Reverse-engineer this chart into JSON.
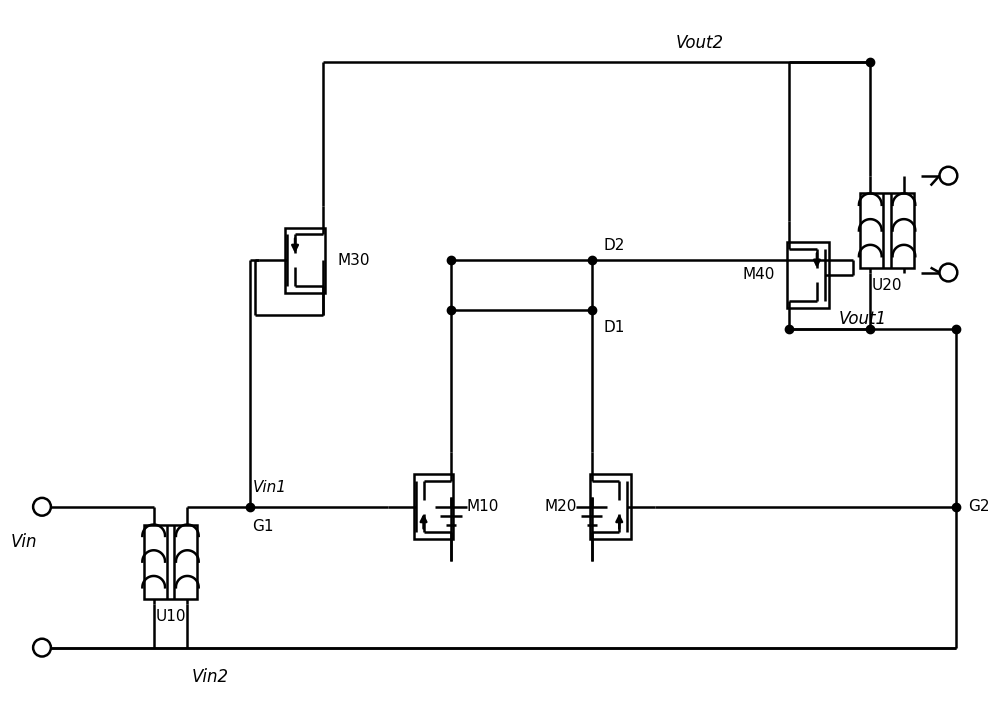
{
  "bg_color": "#ffffff",
  "lc": "#000000",
  "lw": 1.8,
  "figsize": [
    10.0,
    7.19
  ],
  "dpi": 100,
  "labels": {
    "Vin": "Vin",
    "Vin1": "Vin1",
    "Vin2": "Vin2",
    "Vout1": "Vout1",
    "Vout2": "Vout2",
    "G1": "G1",
    "G2": "G2",
    "D1": "D1",
    "D2": "D2",
    "M10": "M10",
    "M20": "M20",
    "M30": "M30",
    "M40": "M40",
    "U10": "U10",
    "U20": "U20"
  }
}
